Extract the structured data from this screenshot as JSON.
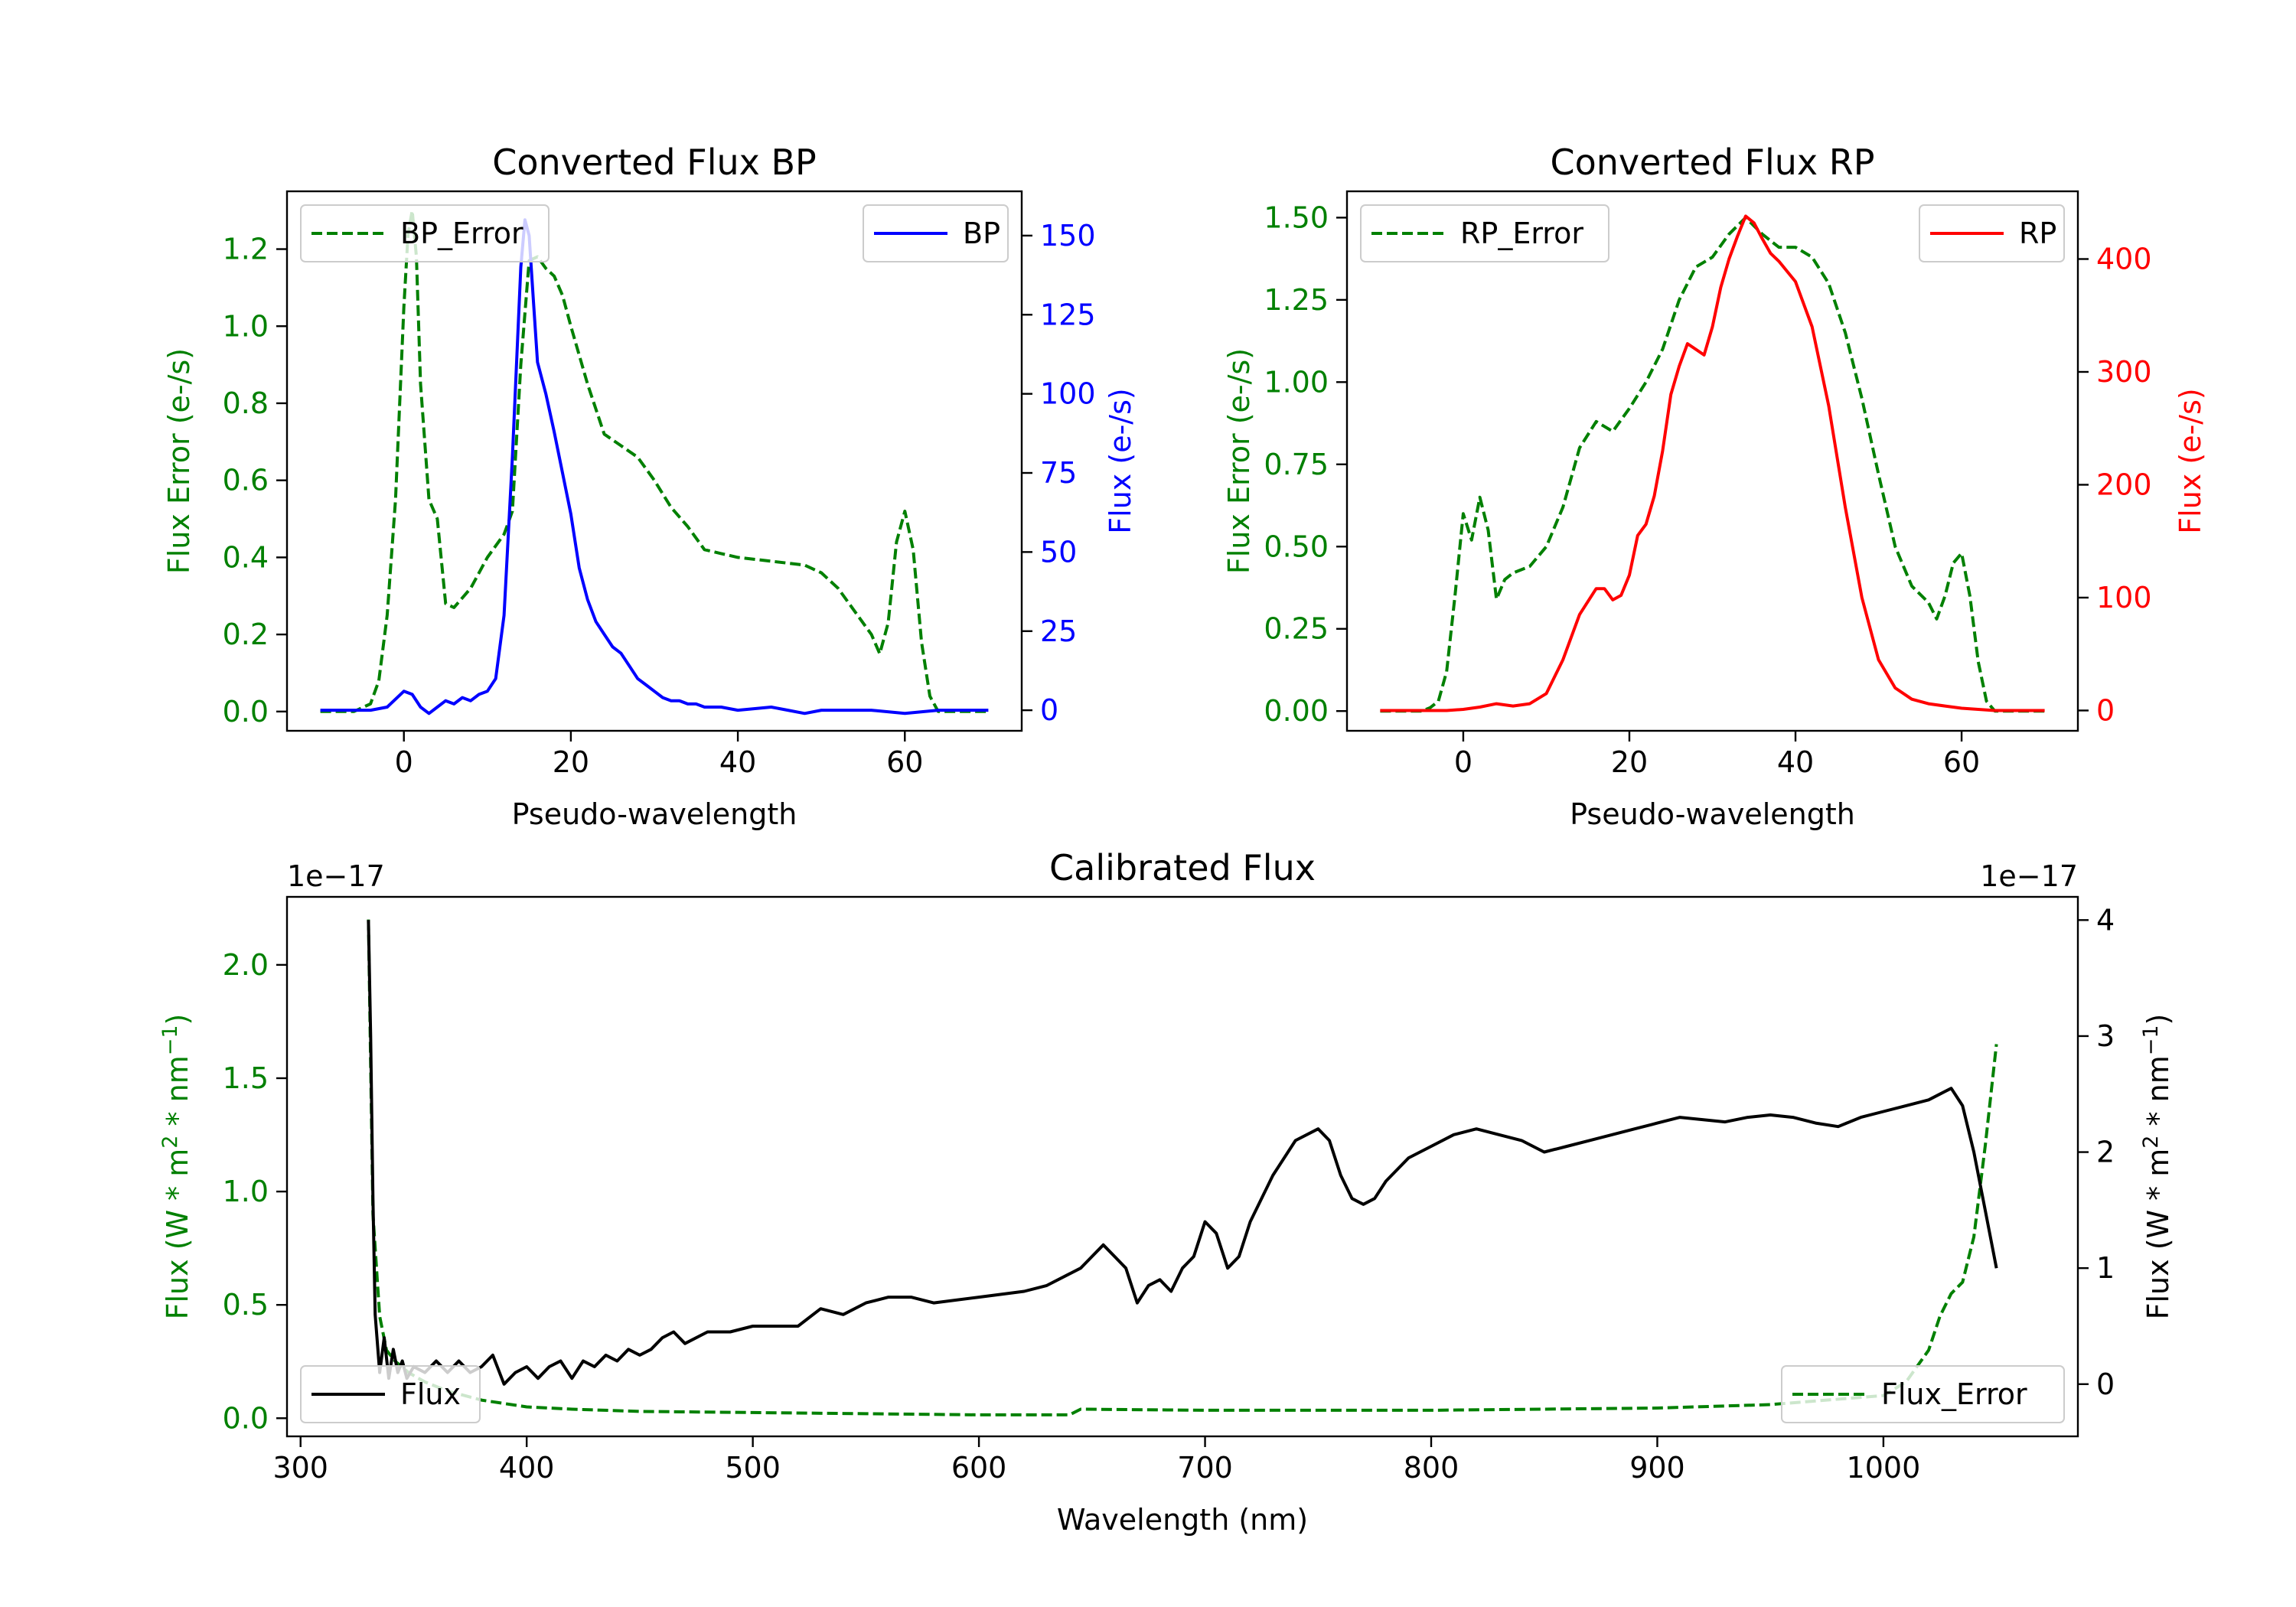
{
  "chart_data": [
    {
      "type": "line",
      "title": "Converted Flux BP",
      "xlabel": "Pseudo-wavelength",
      "ylabel_left": "Flux Error (e-/s)",
      "ylabel_right": "Flux (e-/s)",
      "xlim": [
        -14,
        74
      ],
      "xticks": [
        "0",
        "20",
        "40",
        "60"
      ],
      "ylim_left": [
        -0.05,
        1.35
      ],
      "yticks_left": [
        "0.0",
        "0.2",
        "0.4",
        "0.6",
        "0.8",
        "1.0",
        "1.2"
      ],
      "ylim_right": [
        -6.5,
        164
      ],
      "yticks_right": [
        "0",
        "25",
        "50",
        "75",
        "100",
        "125",
        "150"
      ],
      "legend_left": {
        "label": "BP_Error",
        "location": "upper-left"
      },
      "legend_right": {
        "label": "BP",
        "location": "upper-right"
      },
      "colors": {
        "error": "#008000",
        "flux": "#0000ff"
      },
      "series": [
        {
          "name": "BP_Error",
          "axis": "left",
          "style": "dashed",
          "x": [
            -10,
            -6,
            -4,
            -3,
            -2,
            -1,
            0,
            0.5,
            1,
            1.5,
            2,
            3,
            4,
            5,
            6,
            8,
            10,
            12,
            13,
            14,
            15,
            16,
            17,
            18,
            19,
            20,
            22,
            24,
            26,
            28,
            30,
            32,
            34,
            36,
            38,
            40,
            44,
            48,
            50,
            52,
            54,
            56,
            57,
            58,
            59,
            60,
            61,
            62,
            63,
            64,
            66,
            70
          ],
          "y": [
            0.0,
            0.0,
            0.02,
            0.08,
            0.25,
            0.55,
            1.05,
            1.24,
            1.3,
            1.18,
            0.85,
            0.55,
            0.5,
            0.28,
            0.27,
            0.32,
            0.4,
            0.46,
            0.52,
            0.9,
            1.17,
            1.18,
            1.15,
            1.13,
            1.08,
            1.0,
            0.85,
            0.72,
            0.69,
            0.66,
            0.6,
            0.53,
            0.48,
            0.42,
            0.41,
            0.4,
            0.39,
            0.38,
            0.36,
            0.32,
            0.26,
            0.2,
            0.15,
            0.23,
            0.44,
            0.52,
            0.42,
            0.18,
            0.04,
            0.0,
            0.0,
            0.0
          ]
        },
        {
          "name": "BP",
          "axis": "right",
          "style": "solid",
          "x": [
            -10,
            -6,
            -4,
            -2,
            0,
            1,
            2,
            3,
            4,
            5,
            6,
            7,
            8,
            9,
            10,
            11,
            12,
            13,
            14,
            14.5,
            15,
            15.5,
            16,
            17,
            18,
            19,
            20,
            21,
            22,
            23,
            24,
            25,
            26,
            27,
            28,
            29,
            30,
            31,
            32,
            33,
            34,
            35,
            36,
            38,
            40,
            44,
            46,
            48,
            50,
            52,
            56,
            60,
            64,
            70
          ],
          "y": [
            0,
            0,
            0,
            1,
            6,
            5,
            1,
            -1,
            1,
            3,
            2,
            4,
            3,
            5,
            6,
            10,
            30,
            80,
            140,
            155,
            150,
            130,
            110,
            100,
            88,
            75,
            62,
            45,
            35,
            28,
            24,
            20,
            18,
            14,
            10,
            8,
            6,
            4,
            3,
            3,
            2,
            2,
            1,
            1,
            0,
            1,
            0,
            -1,
            0,
            0,
            0,
            -1,
            0,
            0
          ]
        }
      ]
    },
    {
      "type": "line",
      "title": "Converted Flux RP",
      "xlabel": "Pseudo-wavelength",
      "ylabel_left": "Flux Error (e-/s)",
      "ylabel_right": "Flux (e-/s)",
      "xlim": [
        -14,
        74
      ],
      "xticks": [
        "0",
        "20",
        "40",
        "60"
      ],
      "ylim_left": [
        -0.06,
        1.58
      ],
      "yticks_left": [
        "0.00",
        "0.25",
        "0.50",
        "0.75",
        "1.00",
        "1.25",
        "1.50"
      ],
      "ylim_right": [
        -18,
        460
      ],
      "yticks_right": [
        "0",
        "100",
        "200",
        "300",
        "400"
      ],
      "legend_left": {
        "label": "RP_Error",
        "location": "upper-left"
      },
      "legend_right": {
        "label": "RP",
        "location": "upper-right"
      },
      "colors": {
        "error": "#008000",
        "flux": "#ff0000"
      },
      "series": [
        {
          "name": "RP_Error",
          "axis": "left",
          "style": "dashed",
          "x": [
            -10,
            -5,
            -4,
            -3,
            -2,
            -1,
            0,
            1,
            2,
            3,
            4,
            5,
            6,
            8,
            10,
            12,
            14,
            16,
            18,
            20,
            22,
            24,
            26,
            28,
            30,
            32,
            34,
            36,
            38,
            40,
            42,
            44,
            46,
            48,
            50,
            52,
            54,
            56,
            57,
            58,
            59,
            60,
            61,
            62,
            63,
            64,
            66,
            70
          ],
          "y": [
            0.0,
            0.0,
            0.01,
            0.03,
            0.12,
            0.35,
            0.6,
            0.52,
            0.65,
            0.55,
            0.34,
            0.4,
            0.42,
            0.44,
            0.5,
            0.62,
            0.8,
            0.88,
            0.85,
            0.92,
            1.0,
            1.1,
            1.25,
            1.35,
            1.38,
            1.45,
            1.5,
            1.45,
            1.41,
            1.41,
            1.38,
            1.3,
            1.15,
            0.95,
            0.72,
            0.5,
            0.38,
            0.33,
            0.28,
            0.35,
            0.45,
            0.48,
            0.35,
            0.15,
            0.03,
            0.0,
            0.0,
            0.0
          ]
        },
        {
          "name": "RP",
          "axis": "right",
          "style": "solid",
          "x": [
            -10,
            -4,
            -2,
            0,
            2,
            4,
            6,
            8,
            10,
            12,
            14,
            16,
            17,
            18,
            19,
            20,
            21,
            22,
            23,
            24,
            25,
            26,
            27,
            28,
            29,
            30,
            31,
            32,
            33,
            34,
            35,
            36,
            37,
            38,
            40,
            42,
            44,
            46,
            48,
            50,
            52,
            54,
            56,
            58,
            60,
            62,
            64,
            66,
            70
          ],
          "y": [
            0,
            0,
            0,
            1,
            3,
            6,
            4,
            6,
            15,
            45,
            85,
            108,
            108,
            98,
            102,
            120,
            155,
            165,
            190,
            230,
            280,
            305,
            325,
            320,
            315,
            340,
            375,
            400,
            420,
            438,
            432,
            418,
            405,
            398,
            380,
            340,
            270,
            180,
            100,
            45,
            20,
            10,
            6,
            4,
            2,
            1,
            0,
            0,
            0
          ]
        }
      ]
    },
    {
      "type": "line",
      "title": "Calibrated Flux",
      "xlabel": "Wavelength (nm)",
      "ylabel_left": "Flux (W * m$^2$ * nm$^{-1}$)",
      "ylabel_right": "Flux (W * m$^2$ * nm$^{-1}$)",
      "ylabel_left_parts": {
        "pre": "Flux (W * m",
        "sup1": "2",
        "mid": " * nm",
        "sup2": "−1",
        "post": ")"
      },
      "ylabel_right_parts": {
        "pre": "Flux (W * m",
        "sup1": "2",
        "mid": " * nm",
        "sup2": "−1",
        "post": ")"
      },
      "offset_left": "1e−17",
      "offset_right": "1e−17",
      "xlim": [
        294,
        1086
      ],
      "xticks": [
        "300",
        "400",
        "500",
        "600",
        "700",
        "800",
        "900",
        "1000"
      ],
      "ylim_left": [
        -0.08,
        2.3
      ],
      "yticks_left": [
        "0.0",
        "0.5",
        "1.0",
        "1.5",
        "2.0"
      ],
      "ylim_right": [
        -0.45,
        4.2
      ],
      "yticks_right": [
        "0",
        "1",
        "2",
        "3",
        "4"
      ],
      "legend_left": {
        "label": "Flux",
        "location": "lower-left"
      },
      "legend_right": {
        "label": "Flux_Error",
        "location": "lower-right"
      },
      "colors": {
        "error": "#008000",
        "flux": "#000000"
      },
      "series": [
        {
          "name": "Flux_Error",
          "axis": "left",
          "style": "dashed",
          "x": [
            330,
            332,
            335,
            338,
            342,
            348,
            355,
            365,
            380,
            400,
            420,
            450,
            500,
            550,
            600,
            640,
            645,
            700,
            800,
            900,
            950,
            1000,
            1010,
            1020,
            1025,
            1030,
            1035,
            1040,
            1045,
            1050
          ],
          "y": [
            2.2,
            0.9,
            0.45,
            0.3,
            0.25,
            0.2,
            0.16,
            0.12,
            0.08,
            0.05,
            0.04,
            0.03,
            0.025,
            0.02,
            0.015,
            0.015,
            0.04,
            0.035,
            0.035,
            0.045,
            0.06,
            0.1,
            0.16,
            0.3,
            0.45,
            0.55,
            0.6,
            0.8,
            1.2,
            1.65
          ]
        },
        {
          "name": "Flux",
          "axis": "right",
          "style": "solid",
          "x": [
            330,
            331,
            332,
            333,
            335,
            337,
            339,
            341,
            343,
            345,
            347,
            350,
            355,
            360,
            365,
            370,
            375,
            380,
            385,
            390,
            395,
            400,
            405,
            410,
            415,
            420,
            425,
            430,
            435,
            440,
            445,
            450,
            455,
            460,
            465,
            470,
            480,
            490,
            500,
            510,
            520,
            530,
            540,
            550,
            560,
            570,
            580,
            600,
            620,
            630,
            640,
            645,
            650,
            655,
            660,
            665,
            670,
            675,
            680,
            685,
            690,
            695,
            700,
            705,
            710,
            715,
            720,
            730,
            740,
            750,
            755,
            760,
            765,
            770,
            775,
            780,
            790,
            800,
            810,
            820,
            830,
            840,
            850,
            860,
            870,
            880,
            890,
            900,
            910,
            920,
            930,
            940,
            950,
            960,
            970,
            980,
            990,
            1000,
            1010,
            1020,
            1025,
            1030,
            1035,
            1040,
            1045,
            1050
          ],
          "y": [
            4.0,
            3.0,
            1.6,
            0.6,
            0.1,
            0.4,
            0.05,
            0.3,
            0.1,
            0.2,
            0.05,
            0.15,
            0.1,
            0.2,
            0.1,
            0.2,
            0.1,
            0.15,
            0.25,
            0.0,
            0.1,
            0.15,
            0.05,
            0.15,
            0.2,
            0.05,
            0.2,
            0.15,
            0.25,
            0.2,
            0.3,
            0.25,
            0.3,
            0.4,
            0.45,
            0.35,
            0.45,
            0.45,
            0.5,
            0.5,
            0.5,
            0.65,
            0.6,
            0.7,
            0.75,
            0.75,
            0.7,
            0.75,
            0.8,
            0.85,
            0.95,
            1.0,
            1.1,
            1.2,
            1.1,
            1.0,
            0.7,
            0.85,
            0.9,
            0.8,
            1.0,
            1.1,
            1.4,
            1.3,
            1.0,
            1.1,
            1.4,
            1.8,
            2.1,
            2.2,
            2.1,
            1.8,
            1.6,
            1.55,
            1.6,
            1.75,
            1.95,
            2.05,
            2.15,
            2.2,
            2.15,
            2.1,
            2.0,
            2.05,
            2.1,
            2.15,
            2.2,
            2.25,
            2.3,
            2.28,
            2.26,
            2.3,
            2.32,
            2.3,
            2.25,
            2.22,
            2.3,
            2.35,
            2.4,
            2.45,
            2.5,
            2.55,
            2.4,
            2.0,
            1.5,
            1.0
          ]
        }
      ]
    }
  ]
}
